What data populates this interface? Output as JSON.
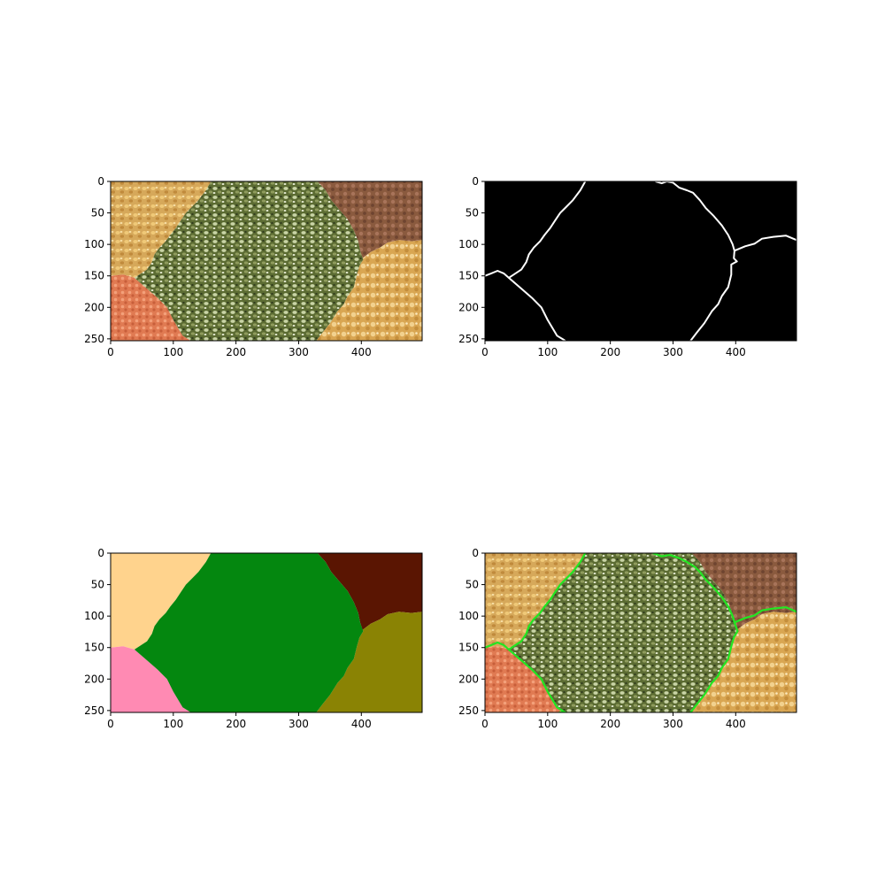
{
  "chart_data": [
    {
      "type": "heatmap",
      "content": "photo",
      "x": {
        "lim": [
          0,
          497
        ],
        "ticks": [
          0,
          100,
          200,
          300,
          400
        ]
      },
      "y": {
        "lim": [
          0,
          253
        ],
        "ticks": [
          0,
          50,
          100,
          150,
          200,
          250
        ],
        "inverted": true
      }
    },
    {
      "type": "heatmap",
      "content": "edges",
      "x": {
        "lim": [
          0,
          497
        ],
        "ticks": [
          0,
          100,
          200,
          300,
          400
        ]
      },
      "y": {
        "lim": [
          0,
          253
        ],
        "ticks": [
          0,
          50,
          100,
          150,
          200,
          250
        ],
        "inverted": true
      }
    },
    {
      "type": "heatmap",
      "content": "segments",
      "x": {
        "lim": [
          0,
          497
        ],
        "ticks": [
          0,
          100,
          200,
          300,
          400
        ]
      },
      "y": {
        "lim": [
          0,
          253
        ],
        "ticks": [
          0,
          50,
          100,
          150,
          200,
          250
        ],
        "inverted": true
      }
    },
    {
      "type": "heatmap",
      "content": "overlay",
      "x": {
        "lim": [
          0,
          497
        ],
        "ticks": [
          0,
          100,
          200,
          300,
          400
        ]
      },
      "y": {
        "lim": [
          0,
          253
        ],
        "ticks": [
          0,
          50,
          100,
          150,
          200,
          250
        ],
        "inverted": true
      }
    }
  ],
  "colors": {
    "segment_top_left": "#ffd38d",
    "segment_center": "#04870f",
    "segment_top_right": "#5a1502",
    "segment_bottom_left": "#ff8ab3",
    "segment_bottom_right": "#8a8304",
    "edge_line": "#ffffff",
    "overlay_line": "#22e622",
    "edge_background": "#000000"
  }
}
